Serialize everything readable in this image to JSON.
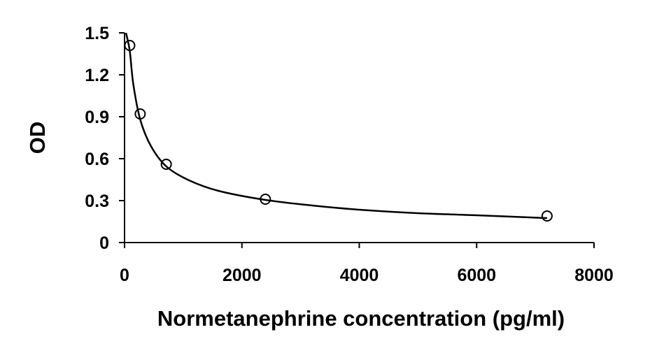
{
  "chart_data": {
    "type": "scatter",
    "title": "",
    "xlabel": "Normetanephrine concentration (pg/ml)",
    "ylabel": "OD",
    "xlim": [
      0,
      8000
    ],
    "ylim": [
      0,
      1.5
    ],
    "x_ticks": [
      "0",
      "2000",
      "4000",
      "6000",
      "8000"
    ],
    "y_ticks": [
      "0",
      "0.3",
      "0.6",
      "0.9",
      "1.2",
      "1.5"
    ],
    "grid": false,
    "legend": "none",
    "series": [
      {
        "marker": "open-circle",
        "x": [
          88.9,
          266.7,
          711.1,
          2400,
          7200
        ],
        "y": [
          1.41,
          0.92,
          0.56,
          0.31,
          0.19
        ]
      }
    ],
    "fit_curve": {
      "style": "solid smooth line",
      "x": [
        25,
        88.9,
        150,
        266.7,
        450,
        711.1,
        1100,
        1600,
        2400,
        3200,
        4000,
        5000,
        6000,
        7200
      ],
      "y": [
        1.5,
        1.37,
        1.13,
        0.88,
        0.69,
        0.545,
        0.445,
        0.37,
        0.305,
        0.265,
        0.235,
        0.21,
        0.195,
        0.175
      ]
    },
    "colors": {
      "marks": "#000000",
      "background": "#ffffff"
    }
  }
}
